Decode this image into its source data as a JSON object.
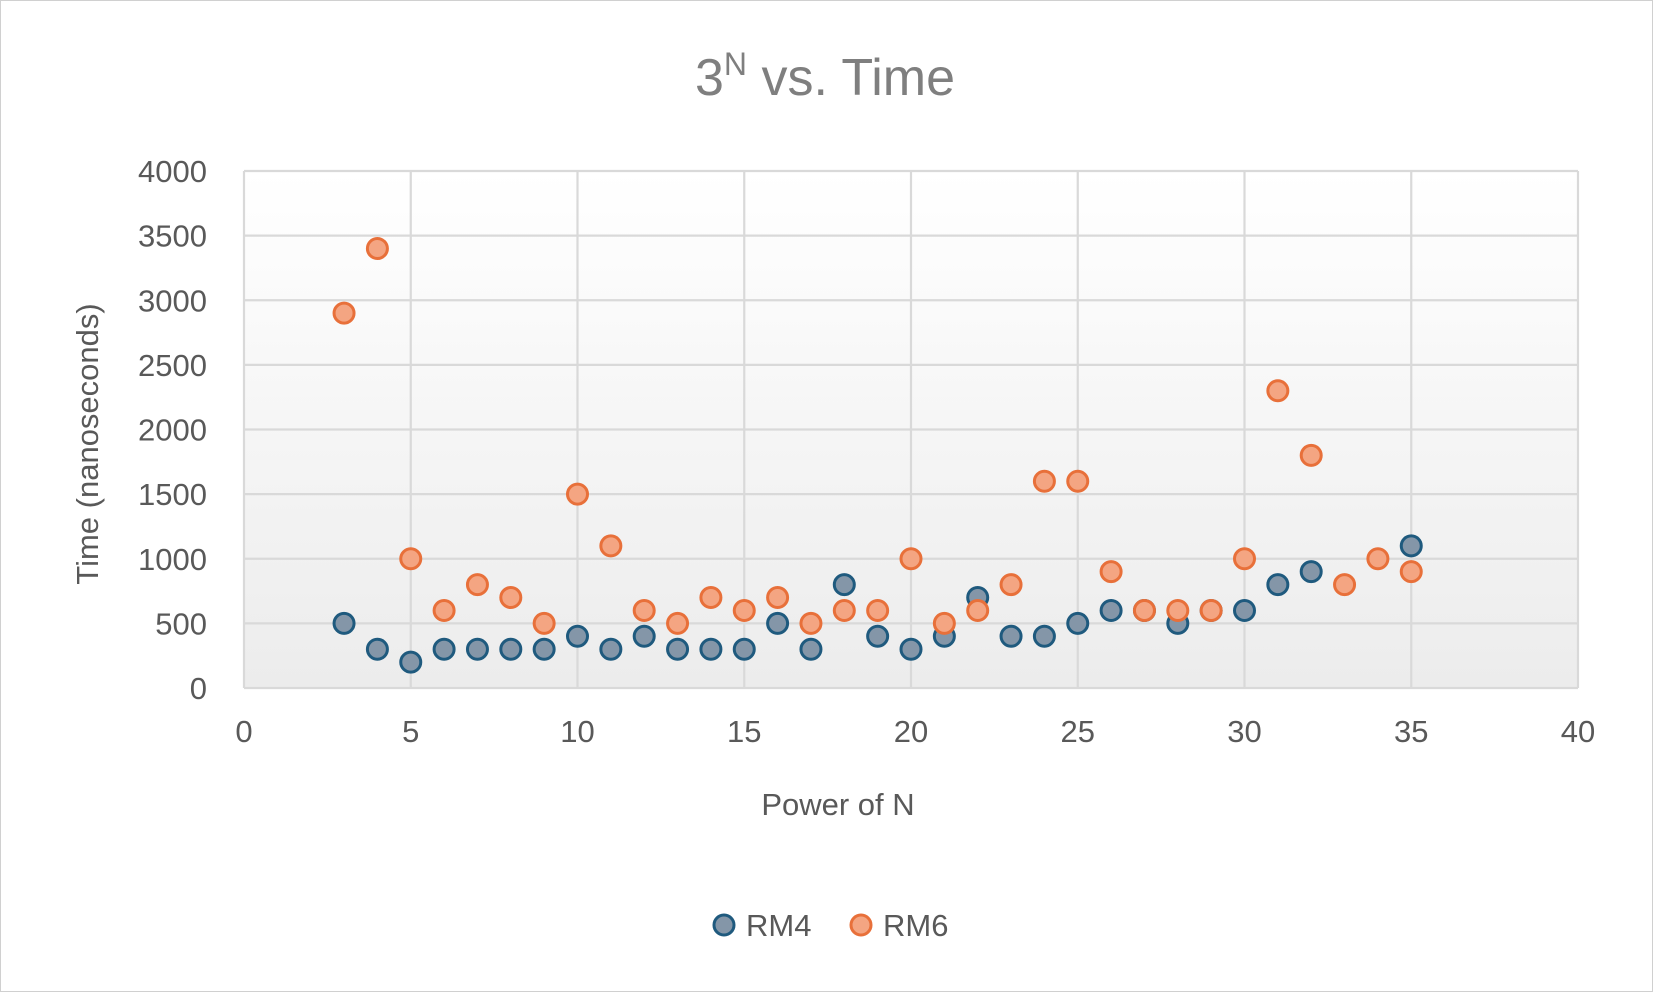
{
  "chart_data": {
    "type": "scatter",
    "title": "3",
    "title_superscript": "N",
    "title_suffix": " vs. Time",
    "xlabel": "Power of N",
    "ylabel": "Time (nanoseconds)",
    "xlim": [
      0,
      40
    ],
    "ylim": [
      0,
      4000
    ],
    "xticks": [
      0,
      5,
      10,
      15,
      20,
      25,
      30,
      35,
      40
    ],
    "yticks": [
      0,
      500,
      1000,
      1500,
      2000,
      2500,
      3000,
      3500,
      4000
    ],
    "grid": true,
    "legend_position": "bottom",
    "series": [
      {
        "name": "RM4",
        "fill": "#8496a8",
        "stroke": "#1f5a7e",
        "x": [
          3,
          4,
          5,
          6,
          7,
          8,
          9,
          10,
          11,
          12,
          13,
          14,
          15,
          16,
          17,
          18,
          19,
          20,
          21,
          22,
          23,
          24,
          25,
          26,
          27,
          28,
          29,
          30,
          31,
          32,
          35
        ],
        "y": [
          500,
          300,
          200,
          300,
          300,
          300,
          300,
          400,
          300,
          400,
          300,
          300,
          300,
          500,
          300,
          800,
          400,
          300,
          400,
          700,
          400,
          400,
          500,
          600,
          600,
          500,
          600,
          600,
          800,
          900,
          1100
        ]
      },
      {
        "name": "RM6",
        "fill": "#f4a582",
        "stroke": "#e8703a",
        "x": [
          3,
          4,
          5,
          6,
          7,
          8,
          9,
          10,
          11,
          12,
          13,
          14,
          15,
          16,
          17,
          18,
          19,
          20,
          21,
          22,
          23,
          24,
          25,
          26,
          27,
          28,
          29,
          30,
          31,
          32,
          33,
          34,
          35
        ],
        "y": [
          2900,
          3400,
          1000,
          600,
          800,
          700,
          500,
          1500,
          1100,
          600,
          500,
          700,
          600,
          700,
          500,
          600,
          600,
          1000,
          500,
          600,
          800,
          1600,
          1600,
          900,
          600,
          600,
          600,
          1000,
          2300,
          1800,
          800,
          1000,
          900
        ]
      }
    ]
  }
}
